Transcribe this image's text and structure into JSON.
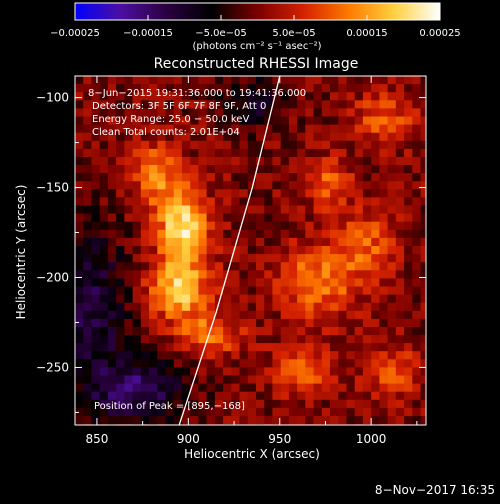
{
  "chart_data": {
    "type": "heatmap",
    "title": "Reconstructed RHESSI Image",
    "xlabel": "Heliocentric X (arcsec)",
    "ylabel": "Heliocentric Y (arcsec)",
    "xlim": [
      838,
      1030
    ],
    "ylim": [
      -282,
      -88
    ],
    "x_ticks": [
      850,
      900,
      950,
      1000
    ],
    "x_tick_labels": [
      "850",
      "900",
      "950",
      "1000"
    ],
    "y_ticks": [
      -100,
      -150,
      -200,
      -250
    ],
    "y_tick_labels": [
      "−100",
      "−150",
      "−200",
      "−250"
    ],
    "colorbar": {
      "range": [
        -0.00025,
        0.00025
      ],
      "ticks": [
        -0.00025,
        -0.00015,
        -5e-05,
        5e-05,
        0.00015,
        0.00025
      ],
      "tick_labels": [
        "−0.00025",
        "−0.00015",
        "−5.0e−05",
        "5.0e−05",
        "0.00015",
        "0.00025"
      ],
      "unit_label": "(photons cm⁻² s⁻¹ asec⁻²)",
      "colormap": [
        "#0000ff",
        "#4c0fa0",
        "#2a0040",
        "#000000",
        "#7a0000",
        "#d42000",
        "#ff7a00",
        "#ffd040",
        "#ffffff"
      ]
    },
    "annotations": [
      "8−Jun−2015 19:31:36.000 to 19:41:36.000",
      "Detectors: 3F 5F 6F 7F 8F 9F, Att 0",
      "Energy Range: 25.0 − 50.0 keV",
      "Clean    Total counts: 2.01E+04"
    ],
    "peak_label": "Position of Peak = [895,−168]",
    "peak_position": [
      895,
      -168
    ],
    "timestamp": "8−Nov−2017 16:35",
    "limb_curve": [
      [
        895,
        -282
      ],
      [
        915,
        -220
      ],
      [
        935,
        -150
      ],
      [
        950,
        -88
      ]
    ],
    "sources": [
      {
        "x": 895,
        "y": -170,
        "sx": 10,
        "sy": 14,
        "amp": 0.00022
      },
      {
        "x": 893,
        "y": -205,
        "sx": 12,
        "sy": 12,
        "amp": 0.00018
      },
      {
        "x": 880,
        "y": -140,
        "sx": 10,
        "sy": 12,
        "amp": 0.00012
      },
      {
        "x": 910,
        "y": -230,
        "sx": 12,
        "sy": 8,
        "amp": 0.00012
      },
      {
        "x": 968,
        "y": -200,
        "sx": 14,
        "sy": 14,
        "amp": 0.00013
      },
      {
        "x": 975,
        "y": -145,
        "sx": 8,
        "sy": 10,
        "amp": 0.00011
      },
      {
        "x": 995,
        "y": -180,
        "sx": 12,
        "sy": 14,
        "amp": 0.0001
      },
      {
        "x": 1005,
        "y": -110,
        "sx": 12,
        "sy": 10,
        "amp": 0.0001
      },
      {
        "x": 960,
        "y": -250,
        "sx": 12,
        "sy": 10,
        "amp": 0.0001
      },
      {
        "x": 1010,
        "y": -250,
        "sx": 10,
        "sy": 10,
        "amp": 9e-05
      }
    ],
    "negative_regions": [
      {
        "x": 845,
        "y": -215,
        "sx": 14,
        "sy": 30,
        "amp": -0.00012
      },
      {
        "x": 870,
        "y": -260,
        "sx": 18,
        "sy": 12,
        "amp": -0.00015
      },
      {
        "x": 935,
        "y": -100,
        "sx": 12,
        "sy": 10,
        "amp": -9e-05
      }
    ]
  }
}
